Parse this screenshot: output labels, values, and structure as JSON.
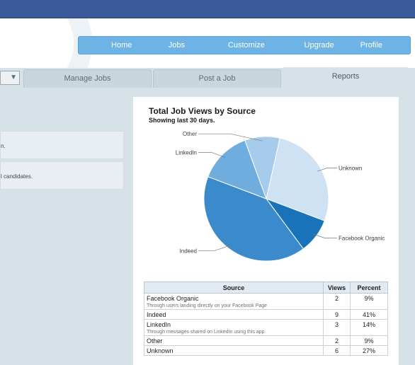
{
  "nav": {
    "items": [
      {
        "label": "Home"
      },
      {
        "label": "Jobs"
      },
      {
        "label": "Customize"
      },
      {
        "label": "Upgrade"
      },
      {
        "label": "Profile"
      }
    ]
  },
  "tabs": {
    "manage": "Manage Jobs",
    "post": "Post a Job",
    "reports": "Reports"
  },
  "left": {
    "box1_text": "n.",
    "box2_text": "l candidates."
  },
  "report": {
    "title": "Total Job Views by Source",
    "subtitle": "Showing last 30 days."
  },
  "chart_data": {
    "type": "pie",
    "title": "Total Job Views by Source",
    "subtitle": "Showing last 30 days.",
    "slices": [
      {
        "label": "Unknown",
        "value": 6,
        "percent": 27,
        "color": "#cfe2f3"
      },
      {
        "label": "Facebook Organic",
        "value": 2,
        "percent": 9,
        "color": "#1a72b8"
      },
      {
        "label": "Indeed",
        "value": 9,
        "percent": 41,
        "color": "#3b8bcc"
      },
      {
        "label": "LinkedIn",
        "value": 3,
        "percent": 14,
        "color": "#6fadde"
      },
      {
        "label": "Other",
        "value": 2,
        "percent": 9,
        "color": "#a6cbeb"
      }
    ]
  },
  "table": {
    "headers": [
      "Source",
      "Views",
      "Percent"
    ],
    "rows": [
      {
        "source": "Facebook Organic",
        "desc": "Through users landing directly on your Facebook Page",
        "views": "2",
        "percent": "9%"
      },
      {
        "source": "Indeed",
        "desc": "",
        "views": "9",
        "percent": "41%"
      },
      {
        "source": "LinkedIn",
        "desc": "Through messages shared on LinkedIn using this app",
        "views": "3",
        "percent": "14%"
      },
      {
        "source": "Other",
        "desc": "",
        "views": "2",
        "percent": "9%"
      },
      {
        "source": "Unknown",
        "desc": "",
        "views": "6",
        "percent": "27%"
      }
    ]
  }
}
